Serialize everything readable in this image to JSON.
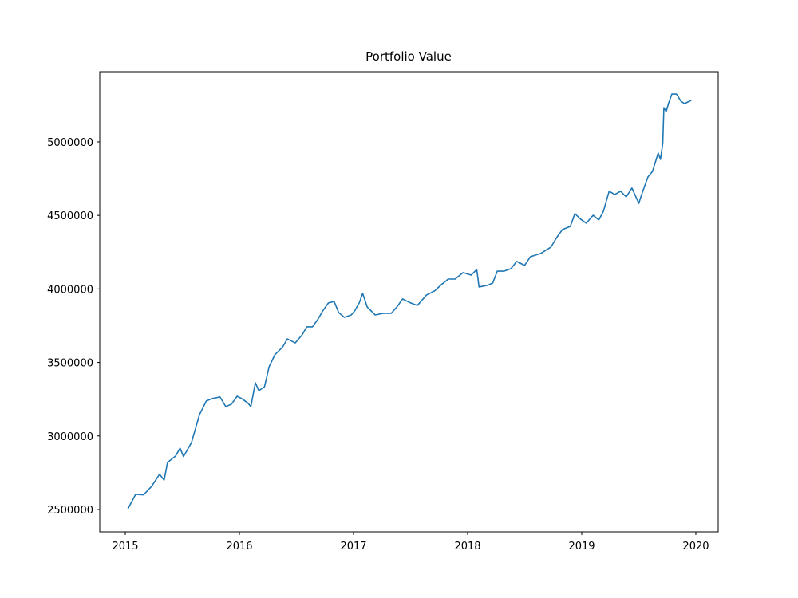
{
  "chart_data": {
    "type": "line",
    "title": "Portfolio Value",
    "x": [
      2015.02,
      2015.09,
      2015.16,
      2015.23,
      2015.3,
      2015.34,
      2015.37,
      2015.44,
      2015.48,
      2015.51,
      2015.58,
      2015.62,
      2015.65,
      2015.71,
      2015.76,
      2015.83,
      2015.88,
      2015.93,
      2015.98,
      2016.02,
      2016.07,
      2016.1,
      2016.14,
      2016.17,
      2016.22,
      2016.26,
      2016.31,
      2016.38,
      2016.42,
      2016.49,
      2016.55,
      2016.59,
      2016.64,
      2016.69,
      2016.73,
      2016.78,
      2016.83,
      2016.87,
      2016.92,
      2016.98,
      2017.01,
      2017.05,
      2017.08,
      2017.12,
      2017.19,
      2017.26,
      2017.33,
      2017.38,
      2017.43,
      2017.5,
      2017.56,
      2017.64,
      2017.71,
      2017.77,
      2017.83,
      2017.89,
      2017.96,
      2018.03,
      2018.08,
      2018.1,
      2018.17,
      2018.22,
      2018.26,
      2018.32,
      2018.38,
      2018.43,
      2018.5,
      2018.55,
      2018.64,
      2018.73,
      2018.78,
      2018.83,
      2018.9,
      2018.94,
      2018.99,
      2019.04,
      2019.1,
      2019.15,
      2019.19,
      2019.24,
      2019.29,
      2019.34,
      2019.39,
      2019.44,
      2019.5,
      2019.53,
      2019.58,
      2019.62,
      2019.67,
      2019.69,
      2019.71,
      2019.72,
      2019.74,
      2019.76,
      2019.79,
      2019.83,
      2019.87,
      2019.9,
      2019.93,
      2019.96
    ],
    "series": [
      {
        "color": "#1f77b4",
        "values": [
          2500000,
          2603000,
          2600000,
          2657000,
          2740000,
          2700000,
          2820000,
          2863000,
          2917000,
          2860000,
          2955000,
          3064000,
          3145000,
          3238000,
          3254000,
          3265000,
          3200000,
          3216000,
          3270000,
          3254000,
          3227000,
          3200000,
          3362000,
          3308000,
          3335000,
          3470000,
          3552000,
          3606000,
          3660000,
          3633000,
          3688000,
          3742000,
          3742000,
          3796000,
          3850000,
          3905000,
          3915000,
          3839000,
          3807000,
          3823000,
          3850000,
          3905000,
          3970000,
          3877000,
          3823000,
          3834000,
          3834000,
          3877000,
          3932000,
          3905000,
          3888000,
          3959000,
          3986000,
          4029000,
          4067000,
          4067000,
          4111000,
          4094000,
          4132000,
          4013000,
          4024000,
          4040000,
          4121000,
          4121000,
          4138000,
          4187000,
          4160000,
          4219000,
          4241000,
          4284000,
          4349000,
          4403000,
          4425000,
          4512000,
          4474000,
          4447000,
          4501000,
          4469000,
          4528000,
          4664000,
          4642000,
          4664000,
          4626000,
          4686000,
          4582000,
          4653000,
          4761000,
          4799000,
          4924000,
          4881000,
          4989000,
          5233000,
          5206000,
          5260000,
          5325000,
          5325000,
          5276000,
          5260000,
          5271000,
          5282000
        ]
      }
    ],
    "xlim": [
      2014.776,
      2020.196
    ],
    "xticks": [
      2015,
      2016,
      2017,
      2018,
      2019,
      2020
    ],
    "ylim": [
      2348000,
      5477000
    ],
    "yticks": [
      2500000,
      3000000,
      3500000,
      4000000,
      4500000,
      5000000
    ],
    "grid": false
  }
}
